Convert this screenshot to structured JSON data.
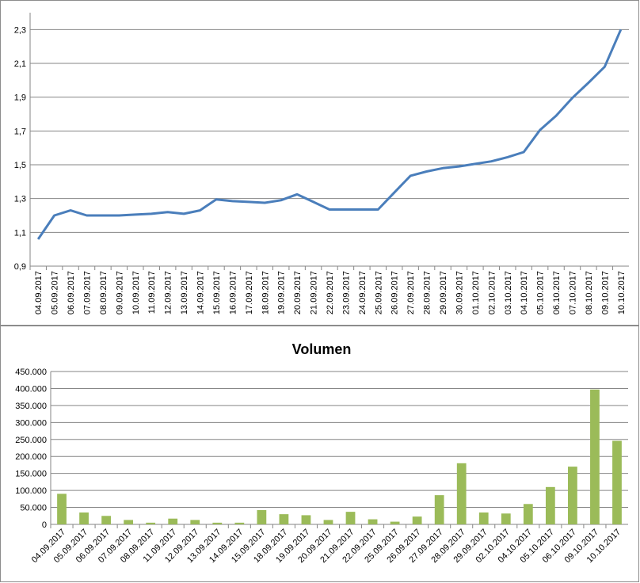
{
  "chart_data": [
    {
      "type": "line",
      "title": "",
      "xlabel": "",
      "ylabel": "",
      "ylim": [
        0.9,
        2.4
      ],
      "yticks": [
        "0,9",
        "1,1",
        "1,3",
        "1,5",
        "1,7",
        "1,9",
        "2,1",
        "2,3"
      ],
      "ytick_values": [
        0.9,
        1.1,
        1.3,
        1.5,
        1.7,
        1.9,
        2.1,
        2.3
      ],
      "grid": true,
      "color": "#4a7ebb",
      "categories": [
        "04.09.2017",
        "05.09.2017",
        "06.09.2017",
        "07.09.2017",
        "08.09.2017",
        "09.09.2017",
        "10.09.2017",
        "11.09.2017",
        "12.09.2017",
        "13.09.2017",
        "14.09.2017",
        "15.09.2017",
        "16.09.2017",
        "17.09.2017",
        "18.09.2017",
        "19.09.2017",
        "20.09.2017",
        "21.09.2017",
        "22.09.2017",
        "23.09.2017",
        "24.09.2017",
        "25.09.2017",
        "26.09.2017",
        "27.09.2017",
        "28.09.2017",
        "29.09.2017",
        "30.09.2017",
        "01.10.2017",
        "02.10.2017",
        "03.10.2017",
        "04.10.2017",
        "05.10.2017",
        "06.10.2017",
        "07.10.2017",
        "08.10.2017",
        "09.10.2017",
        "10.10.2017"
      ],
      "values": [
        1.06,
        1.2,
        1.23,
        1.2,
        1.2,
        1.2,
        1.205,
        1.21,
        1.22,
        1.21,
        1.23,
        1.295,
        1.285,
        1.28,
        1.275,
        1.29,
        1.325,
        1.28,
        1.235,
        1.235,
        1.235,
        1.235,
        1.335,
        1.435,
        1.46,
        1.48,
        1.49,
        1.505,
        1.52,
        1.545,
        1.575,
        1.705,
        1.79,
        1.895,
        1.985,
        2.08,
        2.3
      ]
    },
    {
      "type": "bar",
      "title": "Volumen",
      "xlabel": "",
      "ylabel": "",
      "ylim": [
        0,
        450000
      ],
      "yticks": [
        "0",
        "50.000",
        "100.000",
        "150.000",
        "200.000",
        "250.000",
        "300.000",
        "350.000",
        "400.000",
        "450.000"
      ],
      "ytick_values": [
        0,
        50000,
        100000,
        150000,
        200000,
        250000,
        300000,
        350000,
        400000,
        450000
      ],
      "grid": true,
      "color": "#9bbb59",
      "categories": [
        "04.09.2017",
        "05.09.2017",
        "06.09.2017",
        "07.09.2017",
        "08.09.2017",
        "11.09.2017",
        "12.09.2017",
        "13.09.2017",
        "14.09.2017",
        "15.09.2017",
        "18.09.2017",
        "19.09.2017",
        "20.09.2017",
        "21.09.2017",
        "22.09.2017",
        "25.09.2017",
        "26.09.2017",
        "27.09.2017",
        "28.09.2017",
        "29.09.2017",
        "02.10.2017",
        "04.10.2017",
        "05.10.2017",
        "06.10.2017",
        "09.10.2017",
        "10.10.2017"
      ],
      "values": [
        90000,
        35000,
        25000,
        13000,
        5000,
        17000,
        13000,
        5000,
        5000,
        42000,
        30000,
        27000,
        13000,
        37000,
        15000,
        8000,
        23000,
        86000,
        180000,
        35000,
        32000,
        60000,
        110000,
        170000,
        397000,
        246000
      ]
    }
  ]
}
